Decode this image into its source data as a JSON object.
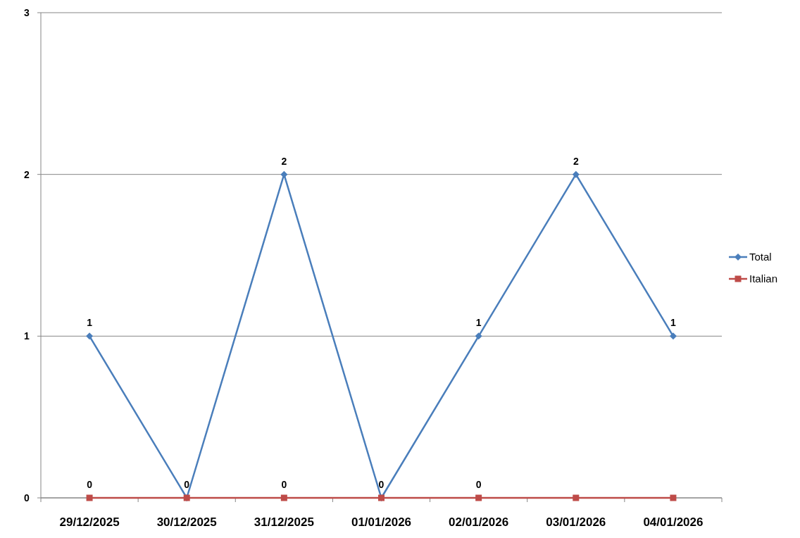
{
  "chart_data": {
    "type": "line",
    "categories": [
      "29/12/2025",
      "30/12/2025",
      "31/12/2025",
      "01/01/2026",
      "02/01/2026",
      "03/01/2026",
      "04/01/2026"
    ],
    "series": [
      {
        "name": "Total",
        "color": "#4a7ebb",
        "marker": "diamond",
        "values": [
          1,
          0,
          2,
          0,
          1,
          2,
          1
        ],
        "value_labels": [
          "1",
          "0",
          "2",
          "0",
          "1",
          "2",
          "1"
        ]
      },
      {
        "name": "Italian",
        "color": "#be4b48",
        "marker": "square",
        "values": [
          0,
          0,
          0,
          0,
          0,
          0,
          0
        ],
        "value_labels": [
          "0",
          null,
          "0",
          null,
          "0",
          null,
          null
        ]
      }
    ],
    "ylim": [
      0,
      3
    ],
    "yticks": [
      0,
      1,
      2,
      3
    ],
    "grid": "y",
    "legend": "right"
  }
}
